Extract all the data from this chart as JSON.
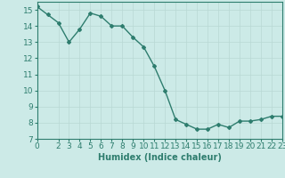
{
  "x": [
    0,
    1,
    2,
    3,
    4,
    5,
    6,
    7,
    8,
    9,
    10,
    11,
    12,
    13,
    14,
    15,
    16,
    17,
    18,
    19,
    20,
    21,
    22,
    23
  ],
  "y": [
    15.2,
    14.7,
    14.2,
    13.0,
    13.8,
    14.8,
    14.6,
    14.0,
    14.0,
    13.3,
    12.7,
    11.5,
    10.0,
    8.2,
    7.9,
    7.6,
    7.6,
    7.9,
    7.7,
    8.1,
    8.1,
    8.2,
    8.4,
    8.4
  ],
  "xlabel": "Humidex (Indice chaleur)",
  "line_color": "#2e7d6e",
  "bg_color": "#cceae7",
  "grid_color": "#b8d8d4",
  "tick_color": "#2e7d6e",
  "xlim": [
    0,
    23
  ],
  "ylim": [
    7,
    15.5
  ],
  "yticks": [
    7,
    8,
    9,
    10,
    11,
    12,
    13,
    14,
    15
  ],
  "xticks": [
    0,
    2,
    3,
    4,
    5,
    6,
    7,
    8,
    9,
    10,
    11,
    12,
    13,
    14,
    15,
    16,
    17,
    18,
    19,
    20,
    21,
    22,
    23
  ],
  "xtick_labels": [
    "0",
    "2",
    "3",
    "4",
    "5",
    "6",
    "7",
    "8",
    "9",
    "10",
    "11",
    "12",
    "13",
    "14",
    "15",
    "16",
    "17",
    "18",
    "19",
    "20",
    "21",
    "22",
    "23"
  ],
  "marker": "D",
  "marker_size": 2.0,
  "line_width": 1.0,
  "font_size": 6.5,
  "xlabel_fontsize": 7.0
}
